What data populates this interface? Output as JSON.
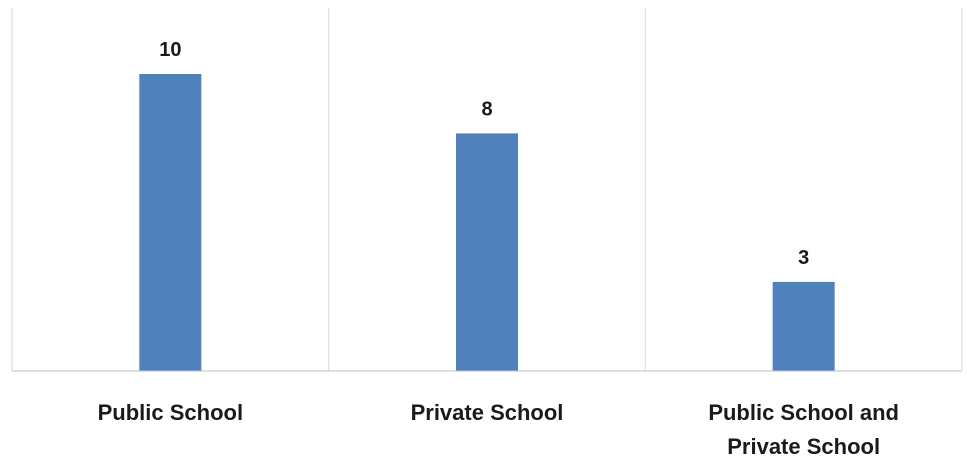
{
  "chart_data": {
    "type": "bar",
    "categories": [
      [
        "Public School"
      ],
      [
        "Private School"
      ],
      [
        "Public School and",
        "Private School"
      ]
    ],
    "values": [
      10,
      8,
      3
    ],
    "ylim": [
      0,
      12
    ],
    "grid": "vertical category separators",
    "legend": "none",
    "bar_color": "#4F81BD",
    "axis_color": "#BFBFBF",
    "separator_color": "#D9D9D9",
    "show_data_labels": true
  }
}
